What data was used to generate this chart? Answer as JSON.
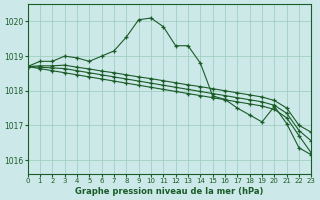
{
  "title": "Graphe pression niveau de la mer (hPa)",
  "background_color": "#cce8e8",
  "grid_color": "#99ccbb",
  "line_color": "#1a5c28",
  "xlim": [
    0,
    23
  ],
  "ylim": [
    1015.6,
    1020.5
  ],
  "yticks": [
    1016,
    1017,
    1018,
    1019,
    1020
  ],
  "xticks": [
    0,
    1,
    2,
    3,
    4,
    5,
    6,
    7,
    8,
    9,
    10,
    11,
    12,
    13,
    14,
    15,
    16,
    17,
    18,
    19,
    20,
    21,
    22,
    23
  ],
  "series": [
    [
      1018.7,
      1018.85,
      1018.85,
      1019.0,
      1018.95,
      1018.85,
      1019.0,
      1019.15,
      1019.55,
      1020.05,
      1020.1,
      1019.85,
      1019.3,
      1019.3,
      1018.8,
      1017.85,
      1017.75,
      1017.5,
      1017.3,
      1017.1,
      1017.55,
      1017.05,
      1016.35,
      1016.15
    ],
    [
      1018.7,
      1018.72,
      1018.72,
      1018.74,
      1018.68,
      1018.63,
      1018.57,
      1018.52,
      1018.46,
      1018.4,
      1018.35,
      1018.29,
      1018.23,
      1018.17,
      1018.12,
      1018.06,
      1018.0,
      1017.94,
      1017.88,
      1017.82,
      1017.72,
      1017.5,
      1017.0,
      1016.8
    ],
    [
      1018.7,
      1018.68,
      1018.66,
      1018.64,
      1018.58,
      1018.52,
      1018.46,
      1018.4,
      1018.34,
      1018.28,
      1018.22,
      1018.16,
      1018.1,
      1018.04,
      1017.98,
      1017.92,
      1017.86,
      1017.8,
      1017.74,
      1017.68,
      1017.58,
      1017.35,
      1016.85,
      1016.55
    ],
    [
      1018.7,
      1018.64,
      1018.58,
      1018.52,
      1018.46,
      1018.4,
      1018.34,
      1018.28,
      1018.22,
      1018.16,
      1018.1,
      1018.04,
      1017.98,
      1017.92,
      1017.86,
      1017.8,
      1017.74,
      1017.68,
      1017.62,
      1017.56,
      1017.46,
      1017.22,
      1016.7,
      1016.2
    ]
  ]
}
